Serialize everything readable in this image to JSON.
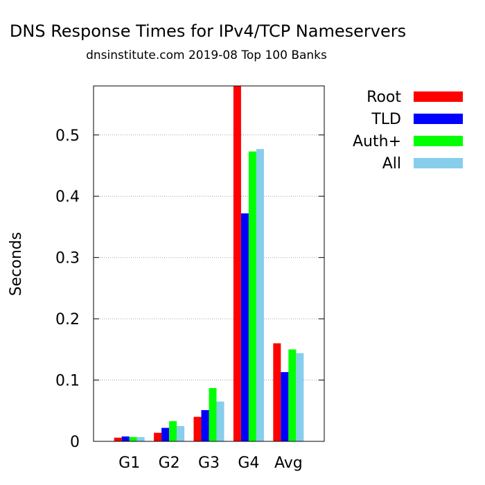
{
  "chart_data": {
    "type": "bar",
    "title": "DNS Response Times for IPv4/TCP Nameservers",
    "subtitle": "dnsinstitute.com 2019-08 Top 100 Banks",
    "xlabel": "",
    "ylabel": "Seconds",
    "categories": [
      "G1",
      "G2",
      "G3",
      "G4",
      "Avg"
    ],
    "ylim": [
      0,
      0.58
    ],
    "yticks": [
      0,
      0.1,
      0.2,
      0.3,
      0.4,
      0.5
    ],
    "ytick_labels": [
      "0",
      "0.1",
      "0.2",
      "0.3",
      "0.4",
      "0.5"
    ],
    "grid": true,
    "legend_position": "right",
    "series": [
      {
        "name": "Root",
        "color": "#ff0000",
        "values": [
          0.006,
          0.014,
          0.04,
          0.58,
          0.16
        ]
      },
      {
        "name": "TLD",
        "color": "#0000ff",
        "values": [
          0.008,
          0.022,
          0.051,
          0.372,
          0.113
        ]
      },
      {
        "name": "Auth+",
        "color": "#00ff00",
        "values": [
          0.007,
          0.033,
          0.087,
          0.473,
          0.15
        ]
      },
      {
        "name": "All",
        "color": "#87ceeb",
        "values": [
          0.007,
          0.025,
          0.065,
          0.477,
          0.144
        ]
      }
    ]
  }
}
